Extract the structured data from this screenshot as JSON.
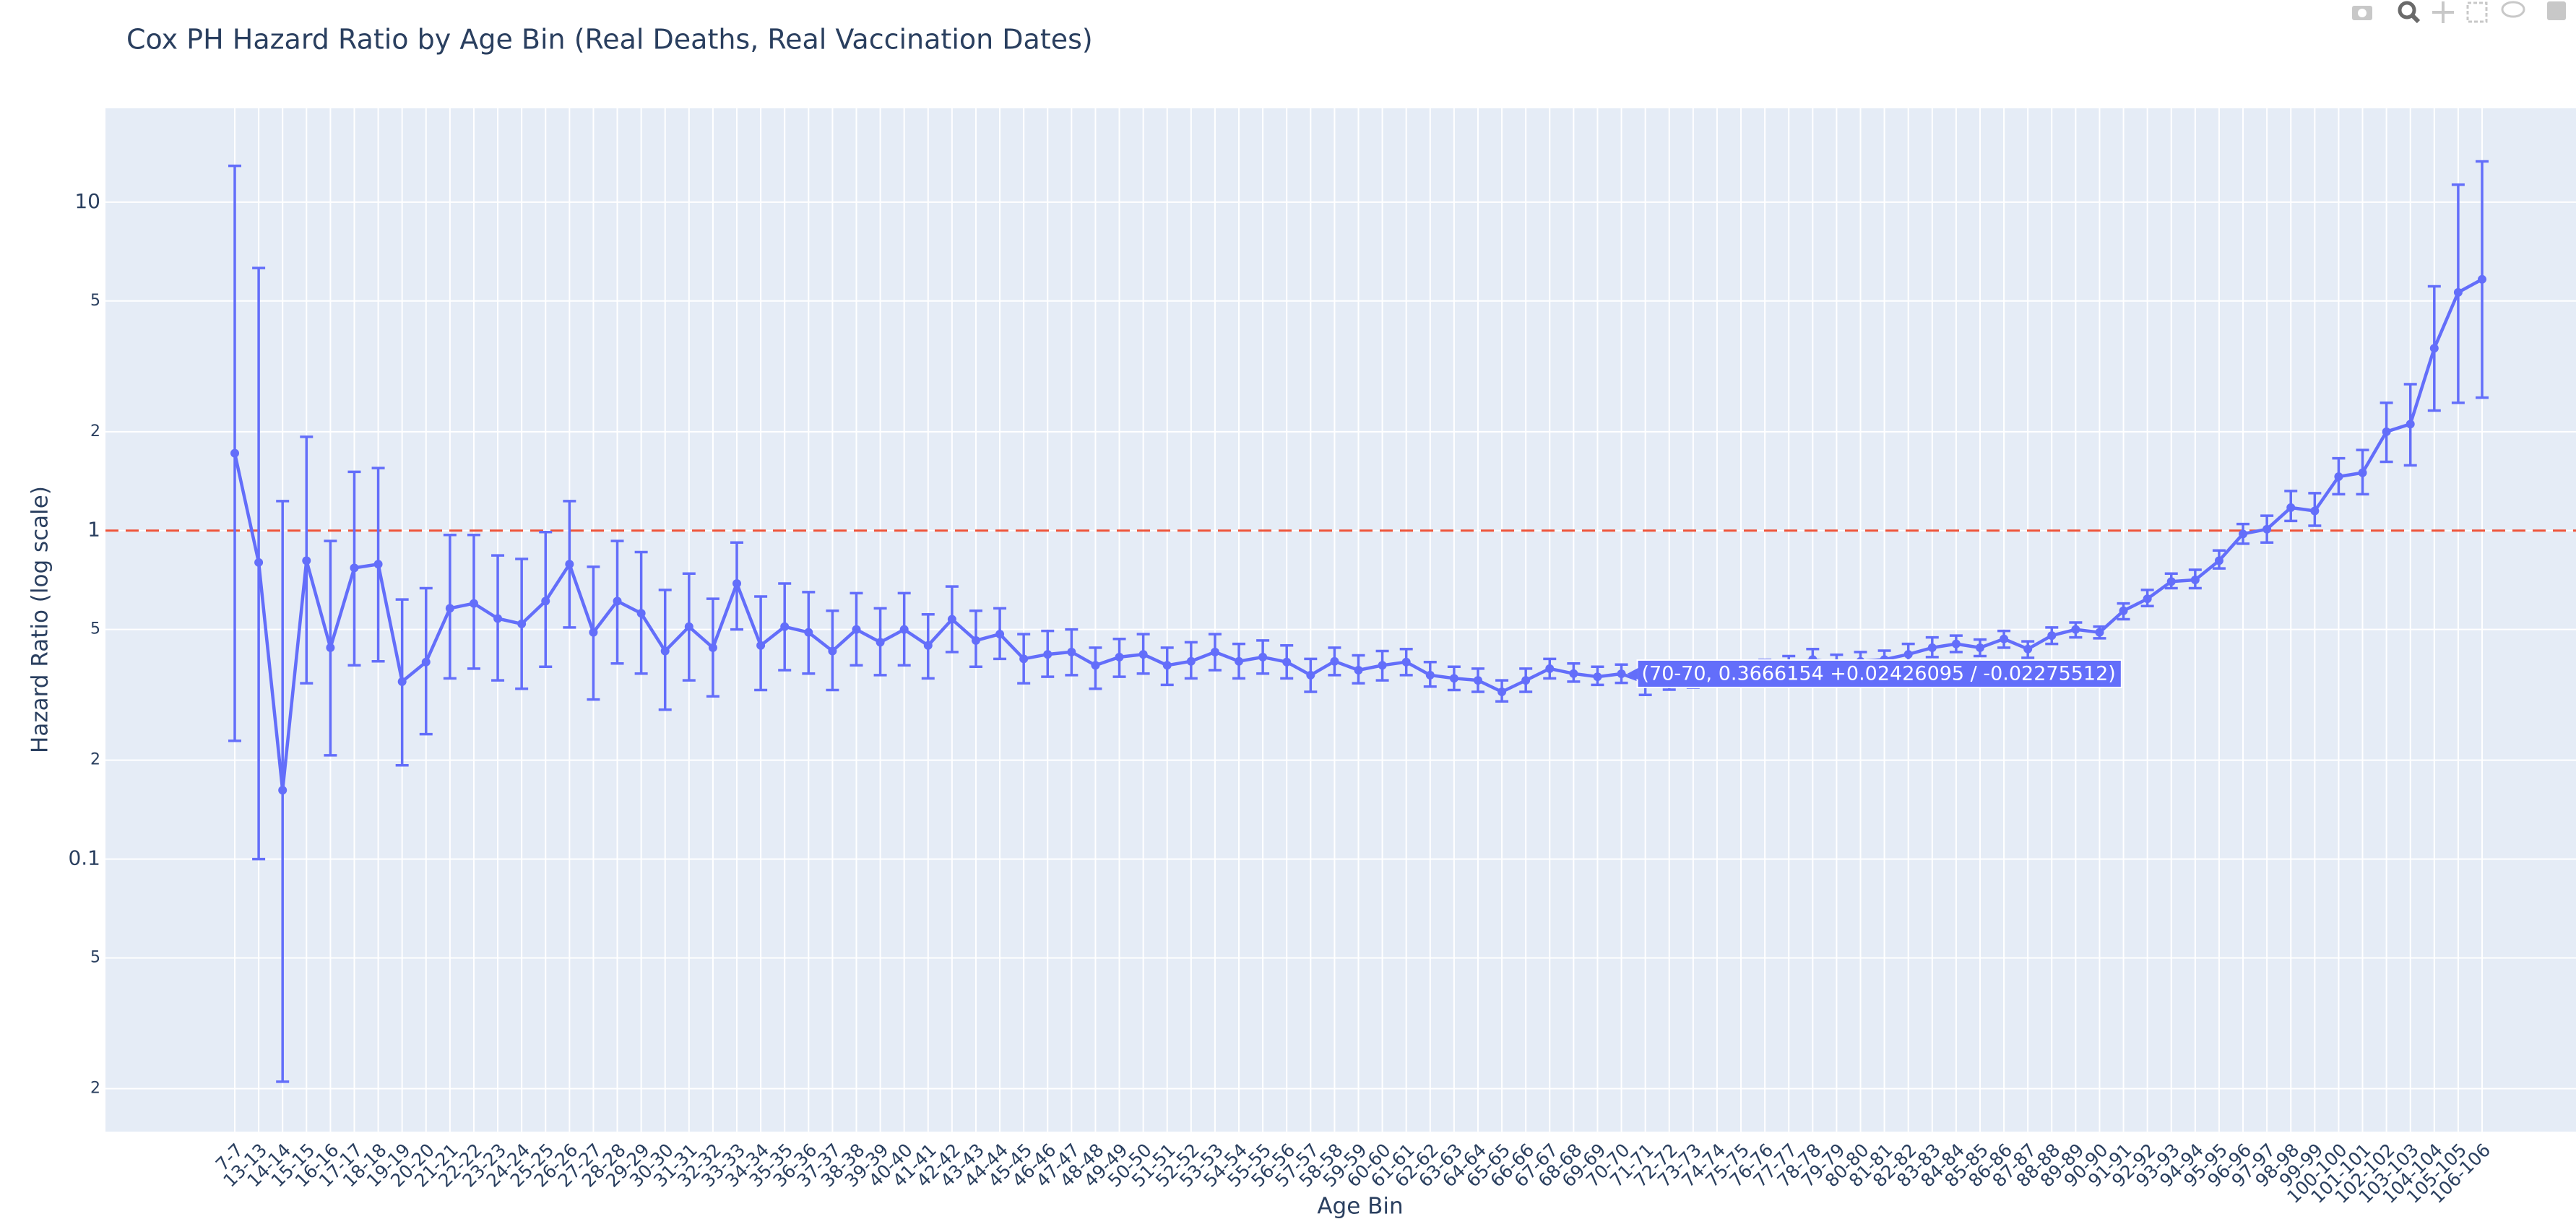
{
  "chart_data": {
    "type": "line",
    "title": "Cox PH Hazard Ratio by Age Bin (Real Deaths, Real Vaccination Dates)",
    "x_label": "Age Bin",
    "y_label": "Hazard Ratio (log scale)",
    "log_y": true,
    "grid": true,
    "reference_line": 1,
    "reference_color": "#ef553b",
    "hover_point": 58,
    "hover_label": "(70-70, 0.3666154 +0.02426095 / -0.02275512)",
    "ylim": [
      0.0148,
      19.3
    ],
    "yticks": [
      {
        "value": 0.02,
        "label": "2"
      },
      {
        "value": 0.05,
        "label": "5"
      },
      0.1,
      {
        "value": 0.2,
        "label": "2"
      },
      {
        "value": 0.5,
        "label": "5"
      },
      1,
      2,
      5,
      10
    ],
    "categories": [
      "7-7",
      "13-13",
      "14-14",
      "15-15",
      "16-16",
      "17-17",
      "18-18",
      "19-19",
      "20-20",
      "21-21",
      "22-22",
      "23-23",
      "24-24",
      "25-25",
      "26-26",
      "27-27",
      "28-28",
      "29-29",
      "30-30",
      "31-31",
      "32-32",
      "33-33",
      "34-34",
      "35-35",
      "36-36",
      "37-37",
      "38-38",
      "39-39",
      "40-40",
      "41-41",
      "42-42",
      "43-43",
      "44-44",
      "45-45",
      "46-46",
      "47-47",
      "48-48",
      "49-49",
      "50-50",
      "51-51",
      "52-52",
      "53-53",
      "54-54",
      "55-55",
      "56-56",
      "57-57",
      "58-58",
      "59-59",
      "60-60",
      "61-61",
      "62-62",
      "63-63",
      "64-64",
      "65-65",
      "66-66",
      "67-67",
      "68-68",
      "69-69",
      "70-70",
      "71-71",
      "72-72",
      "73-73",
      "74-74",
      "75-75",
      "76-76",
      "77-77",
      "78-78",
      "79-79",
      "80-80",
      "81-81",
      "82-82",
      "83-83",
      "84-84",
      "85-85",
      "86-86",
      "87-87",
      "88-88",
      "89-89",
      "90-90",
      "91-91",
      "92-92",
      "93-93",
      "94-94",
      "95-95",
      "96-96",
      "97-97",
      "98-98",
      "99-99",
      "100-100",
      "101-101",
      "102-102",
      "103-103",
      "104-104",
      "105-105",
      "106-106"
    ],
    "series": [
      {
        "color": "#636efa",
        "values": [
          1.72,
          0.8,
          0.162,
          0.81,
          0.44,
          0.77,
          0.79,
          0.347,
          0.398,
          0.58,
          0.6,
          0.54,
          0.52,
          0.61,
          0.79,
          0.49,
          0.61,
          0.56,
          0.43,
          0.51,
          0.44,
          0.69,
          0.447,
          0.51,
          0.49,
          0.43,
          0.5,
          0.457,
          0.5,
          0.447,
          0.537,
          0.463,
          0.484,
          0.407,
          0.42,
          0.427,
          0.389,
          0.412,
          0.42,
          0.389,
          0.4,
          0.427,
          0.4,
          0.412,
          0.398,
          0.363,
          0.4,
          0.376,
          0.389,
          0.398,
          0.363,
          0.355,
          0.35,
          0.323,
          0.35,
          0.38,
          0.367,
          0.359,
          0.3666154,
          0.345,
          0.35,
          0.355,
          0.365,
          0.37,
          0.38,
          0.39,
          0.405,
          0.395,
          0.4,
          0.405,
          0.42,
          0.44,
          0.452,
          0.44,
          0.468,
          0.436,
          0.479,
          0.5,
          0.49,
          0.57,
          0.62,
          0.7,
          0.708,
          0.81,
          0.977,
          1.01,
          1.175,
          1.148,
          1.46,
          1.5,
          2.0,
          2.11,
          3.59,
          5.31,
          5.82
        ],
        "error_plus": [
          11.18,
          5.5,
          1.068,
          1.12,
          0.49,
          0.74,
          0.76,
          0.27,
          0.27,
          0.39,
          0.37,
          0.3,
          0.3,
          0.38,
          0.44,
          0.286,
          0.32,
          0.3,
          0.23,
          0.23,
          0.18,
          0.23,
          0.183,
          0.18,
          0.16,
          0.14,
          0.145,
          0.123,
          0.145,
          0.109,
          0.139,
          0.107,
          0.096,
          0.077,
          0.075,
          0.073,
          0.051,
          0.056,
          0.064,
          0.051,
          0.057,
          0.057,
          0.052,
          0.051,
          0.049,
          0.044,
          0.04,
          0.041,
          0.041,
          0.038,
          0.035,
          0.03,
          0.03,
          0.027,
          0.03,
          0.027,
          0.027,
          0.026,
          0.02426095,
          0.024,
          0.024,
          0.024,
          0.024,
          0.024,
          0.024,
          0.025,
          0.031,
          0.024,
          0.027,
          0.026,
          0.032,
          0.033,
          0.027,
          0.026,
          0.027,
          0.024,
          0.028,
          0.025,
          0.02,
          0.03,
          0.04,
          0.04,
          0.052,
          0.06,
          0.07,
          0.1,
          0.145,
          0.152,
          0.2,
          0.26,
          0.45,
          0.68,
          1.95,
          5.99,
          7.48
        ],
        "error_minus": [
          1.491,
          0.7,
          0.141,
          0.467,
          0.233,
          0.381,
          0.39,
          0.154,
          0.158,
          0.225,
          0.22,
          0.19,
          0.19,
          0.225,
          0.283,
          0.184,
          0.216,
          0.193,
          0.145,
          0.16,
          0.127,
          0.19,
          0.12,
          0.134,
          0.123,
          0.103,
          0.111,
          0.094,
          0.111,
          0.092,
          0.11,
          0.078,
          0.077,
          0.064,
          0.061,
          0.064,
          0.059,
          0.053,
          0.053,
          0.05,
          0.045,
          0.051,
          0.045,
          0.045,
          0.043,
          0.04,
          0.037,
          0.033,
          0.039,
          0.035,
          0.028,
          0.028,
          0.027,
          0.021,
          0.027,
          0.025,
          0.02,
          0.02,
          0.02275512,
          0.029,
          0.022,
          0.022,
          0.022,
          0.022,
          0.022,
          0.023,
          0.025,
          0.022,
          0.024,
          0.024,
          0.026,
          0.028,
          0.025,
          0.025,
          0.028,
          0.026,
          0.027,
          0.027,
          0.02,
          0.033,
          0.031,
          0.032,
          0.04,
          0.043,
          0.065,
          0.09,
          0.105,
          0.113,
          0.17,
          0.21,
          0.38,
          0.53,
          1.27,
          2.86,
          3.28
        ]
      }
    ]
  }
}
